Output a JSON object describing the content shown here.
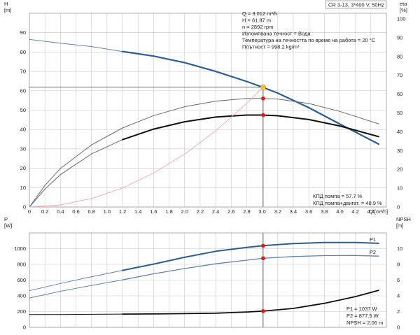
{
  "header_label": "CR 3-13, 3*400 V, 50Hz",
  "info_lines": [
    "Q = 3.012 m³/h",
    "H = 61.87 m",
    "n = 2892 rpm",
    "Изпомпвана течност = Вода",
    "Температура на течността по време на работа = 20 °C",
    "Плътност = 998.2 kg/m³"
  ],
  "efficiency_notes": [
    "КПД помпа = 57.7 %",
    "КПД помпа+двигат. = 48.9 %"
  ],
  "power_notes": [
    "P1 = 1037 W",
    "P2 = 877.5 W",
    "NPSH = 2.06 m"
  ],
  "colors": {
    "blue": "#2b5e95",
    "blue_light": "#5f85b0",
    "black": "#111111",
    "gray": "#6a6a6a",
    "red_line": "#f2a7a7",
    "marker": "#e0161b",
    "duty_point": "#f4c430"
  },
  "chart_data": [
    {
      "type": "line",
      "title": "",
      "xlabel": "Q [m³/h]",
      "ylabel_left": "H [m]",
      "ylabel_right": "eta [%]",
      "xlim": [
        0,
        4.6
      ],
      "ylim": [
        0,
        100
      ],
      "x_ticks": [
        "0",
        "0.2",
        "0.4",
        "0.6",
        "0.8",
        "1.0",
        "1.2",
        "1.4",
        "1.6",
        "1.8",
        "2.0",
        "2.2",
        "2.4",
        "2.6",
        "2.8",
        "3.0",
        "3.2",
        "3.4",
        "3.6",
        "3.8",
        "4.0",
        "4.2",
        "4.4"
      ],
      "y_ticks_left": [
        "0",
        "10",
        "20",
        "30",
        "40",
        "50",
        "60",
        "70",
        "80",
        "90"
      ],
      "y_ticks_right": [
        "0",
        "10",
        "20",
        "30",
        "40",
        "50",
        "60",
        "70",
        "80",
        "90",
        "100"
      ],
      "grid": true,
      "duty_point": {
        "x": 3.012,
        "y": 61.87
      },
      "series": [
        {
          "key": "H_thin",
          "color": "blue_light",
          "width": 1,
          "x": [
            0,
            0.4,
            0.8,
            1.2
          ],
          "y": [
            86.5,
            84.6,
            82.8,
            80.3
          ]
        },
        {
          "key": "H",
          "color": "blue",
          "width": 2.2,
          "x": [
            1.2,
            1.6,
            2.0,
            2.4,
            2.8,
            3.0,
            3.2,
            3.6,
            4.0,
            4.5
          ],
          "y": [
            80.3,
            77.9,
            74.5,
            70.0,
            64.8,
            61.9,
            58.8,
            51.3,
            42.8,
            32.5
          ]
        },
        {
          "key": "eta_pump",
          "color": "gray",
          "width": 1,
          "x": [
            0,
            0.2,
            0.4,
            0.8,
            1.2,
            1.6,
            2.0,
            2.4,
            2.8,
            3.0,
            3.2,
            3.6,
            4.0,
            4.5
          ],
          "y": [
            0,
            11.5,
            20.5,
            33.0,
            42.0,
            48.6,
            53.3,
            56.3,
            57.7,
            57.7,
            57.4,
            55.0,
            50.8,
            44.2
          ]
        },
        {
          "key": "eta_total_thin",
          "color": "gray",
          "width": 1,
          "x": [
            0,
            0.2,
            0.4,
            0.8,
            1.2
          ],
          "y": [
            0,
            9.5,
            17.2,
            28.2,
            35.8
          ]
        },
        {
          "key": "eta_total",
          "color": "black",
          "width": 2,
          "x": [
            1.2,
            1.6,
            2.0,
            2.4,
            2.8,
            3.0,
            3.2,
            3.6,
            4.0,
            4.5
          ],
          "y": [
            35.8,
            41.4,
            45.3,
            47.8,
            48.9,
            48.9,
            48.5,
            46.5,
            43.1,
            37.4
          ]
        },
        {
          "key": "system_curve",
          "color": "red_line",
          "width": 0.9,
          "x": [
            0,
            0.4,
            0.8,
            1.2,
            1.6,
            2.0,
            2.4,
            2.8,
            3.012
          ],
          "y": [
            0,
            1.1,
            4.4,
            9.8,
            17.5,
            27.3,
            39.3,
            53.5,
            61.87
          ]
        }
      ],
      "markers": [
        {
          "x": 3.012,
          "y": 57.7
        },
        {
          "x": 3.012,
          "y": 48.9
        }
      ]
    },
    {
      "type": "line",
      "title": "",
      "xlabel": "",
      "ylabel_left": "P [W]",
      "ylabel_right": "NPSH [m]",
      "xlim": [
        0,
        4.6
      ],
      "ylim": [
        0,
        1200
      ],
      "y_ticks_left": [
        "0",
        "200",
        "400",
        "600",
        "800",
        "1000"
      ],
      "y_ticks_right": [
        "0",
        "2",
        "4",
        "6",
        "8",
        "10"
      ],
      "grid": true,
      "series": [
        {
          "key": "P1_thin",
          "name": "P1",
          "color": "blue_light",
          "width": 1,
          "x": [
            0,
            0.4,
            0.8,
            1.2
          ],
          "y": [
            465,
            557,
            643,
            724
          ]
        },
        {
          "key": "P1",
          "name": "P1",
          "color": "blue",
          "width": 2,
          "x": [
            1.2,
            1.6,
            2.0,
            2.4,
            2.8,
            3.012,
            3.4,
            3.8,
            4.2,
            4.5
          ],
          "y": [
            724,
            804,
            890,
            966,
            1015,
            1037,
            1065,
            1078,
            1078,
            1068
          ]
        },
        {
          "key": "P2_thin",
          "name": "P2",
          "color": "blue_light",
          "width": 1,
          "x": [
            0,
            0.4,
            0.8,
            1.2
          ],
          "y": [
            372,
            458,
            532,
            603
          ]
        },
        {
          "key": "P2",
          "name": "P2",
          "color": "blue_light",
          "width": 1.3,
          "x": [
            1.2,
            1.6,
            2.0,
            2.4,
            2.8,
            3.012,
            3.4,
            3.8,
            4.2,
            4.5
          ],
          "y": [
            603,
            680,
            747,
            807,
            853,
            877.5,
            900,
            911,
            913,
            905
          ]
        },
        {
          "key": "NPSH_thin",
          "color": "black",
          "width": 1,
          "x": [
            0,
            0.4,
            0.8,
            1.2
          ],
          "y": [
            162,
            163,
            165,
            168
          ]
        },
        {
          "key": "NPSH",
          "color": "black",
          "width": 1.8,
          "x": [
            1.2,
            1.6,
            2.0,
            2.4,
            2.8,
            3.012,
            3.4,
            3.8,
            4.2,
            4.5
          ],
          "y": [
            168,
            170,
            174,
            180,
            195,
            206,
            240,
            305,
            390,
            470
          ]
        }
      ],
      "series_labels": [
        {
          "name": "P1",
          "x": 4.5,
          "y": 1068
        },
        {
          "name": "P2",
          "x": 4.5,
          "y": 905
        }
      ],
      "markers": [
        {
          "x": 3.012,
          "y": 1037
        },
        {
          "x": 3.012,
          "y": 877.5
        },
        {
          "x": 3.012,
          "y": 206
        }
      ]
    }
  ]
}
